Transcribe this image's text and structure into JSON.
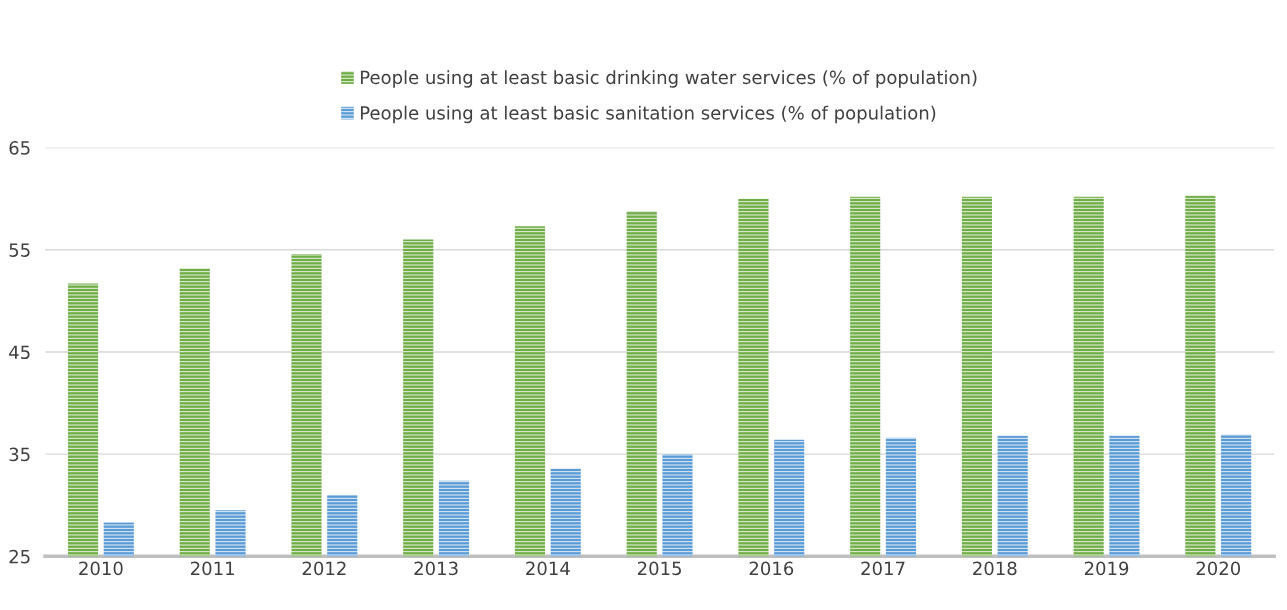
{
  "chart_data": {
    "type": "bar",
    "categories": [
      "2010",
      "2011",
      "2012",
      "2013",
      "2014",
      "2015",
      "2016",
      "2017",
      "2018",
      "2019",
      "2020"
    ],
    "series": [
      {
        "name": "People using at least basic drinking water services (% of population)",
        "color": "#70ad47",
        "values": [
          51.7,
          53.2,
          54.6,
          56.0,
          57.3,
          58.8,
          60.0,
          60.2,
          60.2,
          60.2,
          60.3
        ]
      },
      {
        "name": "People using at least basic sanitation services (% of population)",
        "color": "#5b9bd5",
        "values": [
          28.3,
          29.5,
          31.0,
          32.4,
          33.6,
          35.0,
          36.4,
          36.6,
          36.8,
          36.8,
          36.9
        ]
      }
    ],
    "ylim": [
      25,
      65
    ],
    "yticks": [
      25,
      35,
      45,
      55,
      65
    ],
    "grid": "y",
    "legend": "top"
  }
}
